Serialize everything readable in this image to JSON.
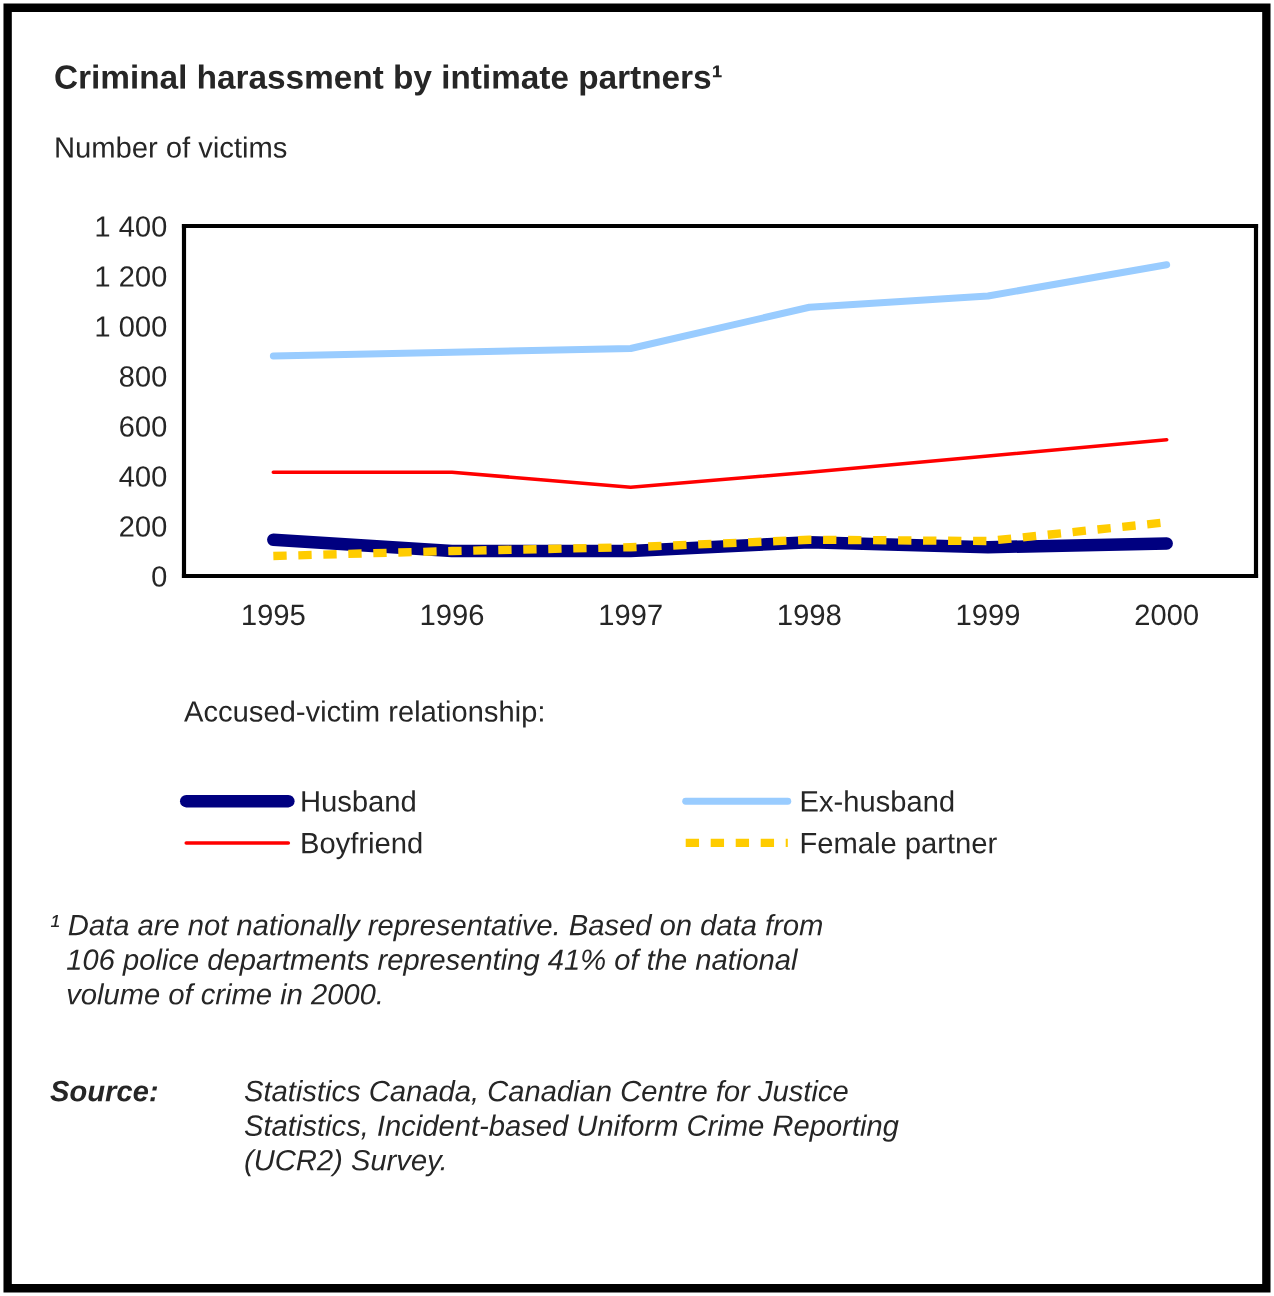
{
  "chart_data": {
    "type": "line",
    "title": "Criminal harassment by intimate partners¹",
    "ylabel": "Number of victims",
    "categories": [
      "1995",
      "1996",
      "1997",
      "1998",
      "1999",
      "2000"
    ],
    "series": [
      {
        "name": "Husband",
        "color": "#000080",
        "values": [
          145,
          100,
          100,
          135,
          115,
          130
        ]
      },
      {
        "name": "Ex-husband",
        "color": "#99ccff",
        "values": [
          880,
          895,
          910,
          1075,
          1120,
          1245
        ]
      },
      {
        "name": "Boyfriend",
        "color": "#ff0000",
        "values": [
          415,
          415,
          355,
          415,
          480,
          545
        ]
      },
      {
        "name": "Female partner",
        "color": "#ffcc00",
        "line_style": "dashed",
        "values": [
          80,
          100,
          115,
          145,
          140,
          215
        ]
      }
    ],
    "ylim": [
      0,
      1400
    ],
    "yticks": [
      0,
      200,
      400,
      600,
      800,
      {
        "value": 1000,
        "label": "1 000"
      },
      {
        "value": 1200,
        "label": "1 200"
      },
      {
        "value": 1400,
        "label": "1 400"
      }
    ],
    "grid": false,
    "legend": "bottom",
    "legend_title": "Accused-victim relationship:",
    "marker": "none",
    "line_style": "solid",
    "annotations": [
      "¹ Data are not nationally representative. Based on data from\n  106 police departments representing 41% of the national\n  volume of crime in 2000.",
      "Source:",
      "Statistics Canada, Canadian Centre for Justice\nStatistics, Incident-based Uniform Crime Reporting\n(UCR2) Survey."
    ]
  }
}
